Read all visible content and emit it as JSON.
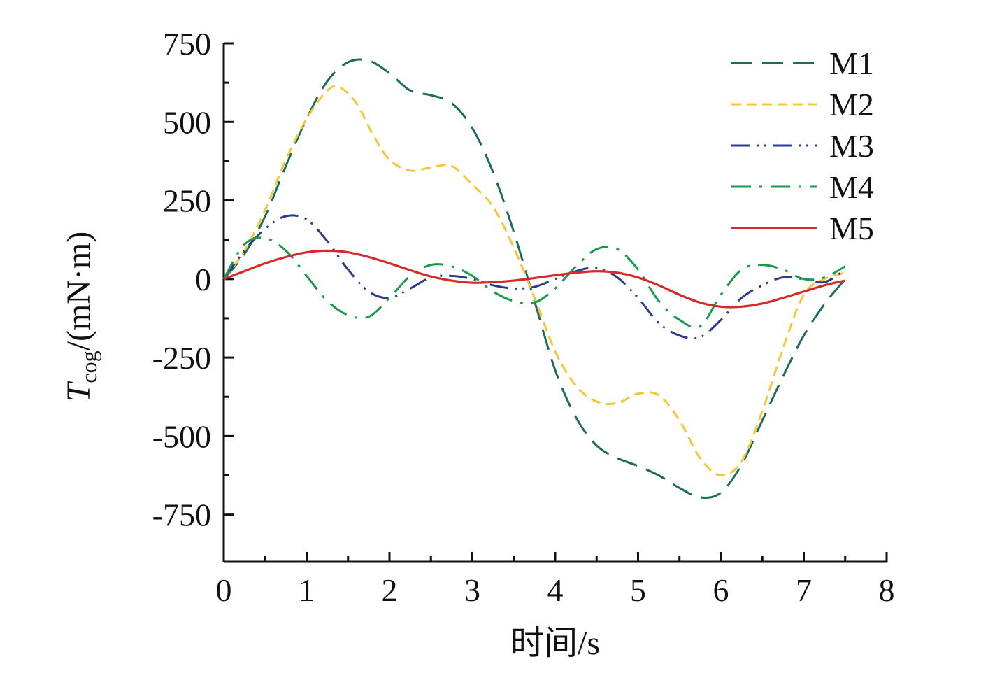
{
  "chart_data": {
    "type": "line",
    "xlabel": "时间/s",
    "ylabel": {
      "symbol": "T",
      "subscript": "cog",
      "unit": "/(mN·m)"
    },
    "xlim": [
      0,
      8
    ],
    "ylim": [
      -900,
      750
    ],
    "x_ticks": [
      0,
      1,
      2,
      3,
      4,
      5,
      6,
      7,
      8
    ],
    "x_tick_labels": [
      "0",
      "1",
      "2",
      "3",
      "4",
      "5",
      "6",
      "7",
      "8"
    ],
    "y_ticks": [
      -750,
      -500,
      -250,
      0,
      250,
      500,
      750
    ],
    "y_tick_labels": [
      "-750",
      "-500",
      "-250",
      "0",
      "250",
      "500",
      "750"
    ],
    "grid": false,
    "legend_position": "top-right",
    "series": [
      {
        "name": "M1",
        "color": "#1d6b5f",
        "dash": "long-dash",
        "x": [
          0,
          0.25,
          0.5,
          0.75,
          1.0,
          1.25,
          1.5,
          1.75,
          2.0,
          2.25,
          2.5,
          2.75,
          3.0,
          3.25,
          3.5,
          3.75,
          4.0,
          4.25,
          4.5,
          4.75,
          5.0,
          5.25,
          5.5,
          5.75,
          6.0,
          6.25,
          6.5,
          6.75,
          7.0,
          7.25,
          7.5
        ],
        "y": [
          0,
          80,
          200,
          360,
          510,
          630,
          690,
          695,
          655,
          600,
          585,
          560,
          480,
          340,
          150,
          -70,
          -290,
          -440,
          -530,
          -570,
          -595,
          -625,
          -665,
          -695,
          -680,
          -590,
          -450,
          -310,
          -180,
          -80,
          0
        ]
      },
      {
        "name": "M2",
        "color": "#f5c63a",
        "dash": "short-dash",
        "x": [
          0,
          0.25,
          0.5,
          0.75,
          1.0,
          1.25,
          1.4,
          1.6,
          1.8,
          2.0,
          2.25,
          2.5,
          2.75,
          3.0,
          3.25,
          3.5,
          3.75,
          4.0,
          4.25,
          4.5,
          4.75,
          5.0,
          5.25,
          5.5,
          5.75,
          6.0,
          6.25,
          6.5,
          6.75,
          7.0,
          7.25,
          7.5
        ],
        "y": [
          0,
          90,
          220,
          380,
          510,
          600,
          610,
          560,
          460,
          380,
          345,
          355,
          360,
          300,
          230,
          100,
          -60,
          -230,
          -340,
          -390,
          -395,
          -365,
          -370,
          -450,
          -570,
          -625,
          -580,
          -420,
          -220,
          -50,
          0,
          20
        ]
      },
      {
        "name": "M3",
        "color": "#2b3a8c",
        "dash": "dash-dot-dot",
        "x": [
          0,
          0.25,
          0.5,
          0.75,
          1.0,
          1.25,
          1.5,
          1.75,
          2.0,
          2.25,
          2.5,
          2.75,
          3.0,
          3.25,
          3.5,
          3.75,
          4.0,
          4.25,
          4.5,
          4.75,
          5.0,
          5.25,
          5.5,
          5.75,
          6.0,
          6.25,
          6.5,
          6.75,
          7.0,
          7.25,
          7.5
        ],
        "y": [
          0,
          90,
          160,
          200,
          190,
          120,
          30,
          -40,
          -60,
          -30,
          5,
          10,
          0,
          -20,
          -30,
          -25,
          0,
          25,
          35,
          5,
          -60,
          -140,
          -180,
          -185,
          -130,
          -60,
          -20,
          5,
          0,
          -10,
          30
        ]
      },
      {
        "name": "M4",
        "color": "#179a4a",
        "dash": "dash-dot",
        "x": [
          0,
          0.25,
          0.5,
          0.75,
          1.0,
          1.25,
          1.5,
          1.75,
          2.0,
          2.25,
          2.5,
          2.75,
          3.0,
          3.25,
          3.5,
          3.75,
          4.0,
          4.25,
          4.5,
          4.75,
          5.0,
          5.25,
          5.5,
          5.75,
          6.0,
          6.25,
          6.5,
          6.75,
          7.0,
          7.25,
          7.5
        ],
        "y": [
          0,
          110,
          130,
          90,
          10,
          -70,
          -115,
          -120,
          -60,
          10,
          45,
          40,
          10,
          -40,
          -70,
          -75,
          -30,
          40,
          95,
          95,
          30,
          -70,
          -130,
          -150,
          -50,
          30,
          45,
          30,
          0,
          5,
          40
        ]
      },
      {
        "name": "M5",
        "color": "#d42a2a",
        "dash": "solid",
        "x": [
          0,
          0.25,
          0.5,
          0.75,
          1.0,
          1.25,
          1.5,
          1.75,
          2.0,
          2.25,
          2.5,
          2.75,
          3.0,
          3.25,
          3.5,
          3.75,
          4.0,
          4.25,
          4.5,
          4.75,
          5.0,
          5.25,
          5.5,
          5.75,
          6.0,
          6.25,
          6.5,
          6.75,
          7.0,
          7.25,
          7.5
        ],
        "y": [
          0,
          25,
          50,
          70,
          85,
          90,
          85,
          70,
          50,
          28,
          8,
          -5,
          -12,
          -10,
          -5,
          3,
          12,
          20,
          25,
          20,
          5,
          -20,
          -50,
          -75,
          -88,
          -88,
          -78,
          -60,
          -40,
          -20,
          -5
        ]
      }
    ]
  }
}
